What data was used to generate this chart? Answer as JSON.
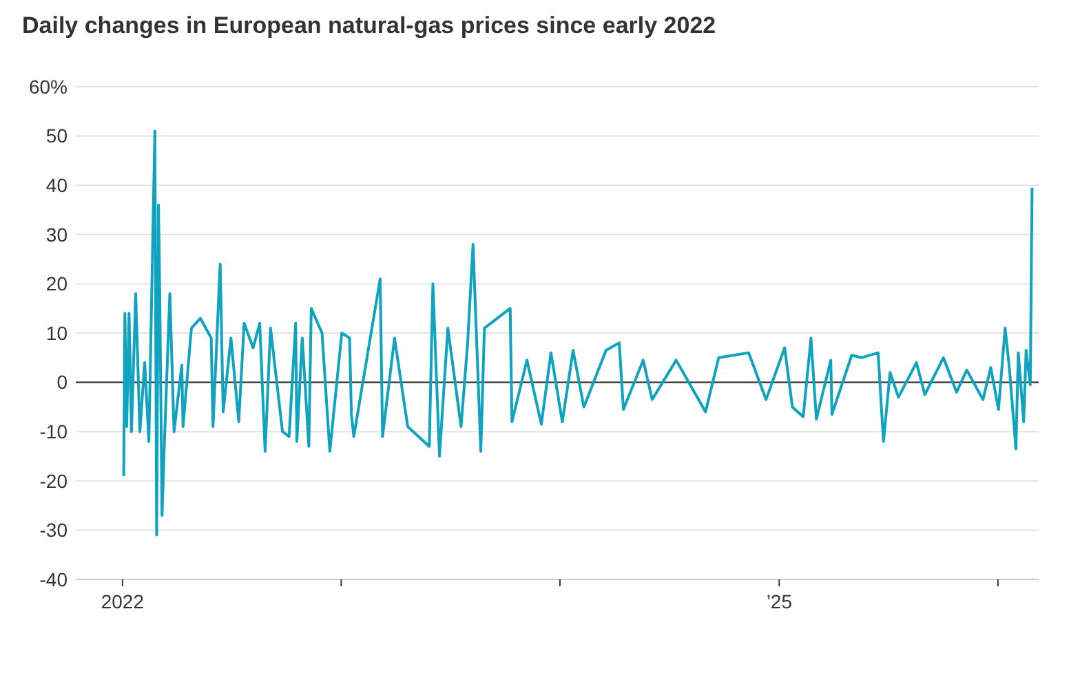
{
  "chart_data": {
    "type": "line",
    "title": "Daily changes in European natural-gas prices since early 2022",
    "x": [
      "2022-01-03",
      "2022-01-05",
      "2022-01-08",
      "2022-01-12",
      "2022-01-16",
      "2022-01-23",
      "2022-01-30",
      "2022-02-07",
      "2022-02-14",
      "2022-02-24",
      "2022-02-27",
      "2022-03-02",
      "2022-03-04",
      "2022-03-08",
      "2022-03-12",
      "2022-03-21",
      "2022-03-28",
      "2022-04-10",
      "2022-04-12",
      "2022-04-26",
      "2022-05-11",
      "2022-05-29",
      "2022-06-01",
      "2022-06-13",
      "2022-06-18",
      "2022-07-01",
      "2022-07-14",
      "2022-07-23",
      "2022-08-07",
      "2022-08-18",
      "2022-08-27",
      "2022-09-05",
      "2022-09-25",
      "2022-10-06",
      "2022-10-17",
      "2022-10-19",
      "2022-10-28",
      "2022-11-08",
      "2022-11-12",
      "2022-11-30",
      "2022-12-13",
      "2023-01-02",
      "2023-01-15",
      "2023-01-18",
      "2023-01-22",
      "2023-03-07",
      "2023-03-11",
      "2023-03-31",
      "2023-04-22",
      "2023-05-28",
      "2023-06-03",
      "2023-06-14",
      "2023-06-28",
      "2023-07-20",
      "2023-07-31",
      "2023-08-09",
      "2023-08-22",
      "2023-08-28",
      "2023-10-10",
      "2023-10-13",
      "2023-11-07",
      "2023-12-01",
      "2023-12-17",
      "2024-01-05",
      "2024-01-23",
      "2024-02-10",
      "2024-03-18",
      "2024-04-09",
      "2024-04-16",
      "2024-05-19",
      "2024-06-03",
      "2024-07-13",
      "2024-08-31",
      "2024-09-22",
      "2024-11-11",
      "2024-12-10",
      "2025-01-10",
      "2025-01-23",
      "2025-02-10",
      "2025-02-23",
      "2025-03-04",
      "2025-03-28",
      "2025-03-30",
      "2025-05-02",
      "2025-05-18",
      "2025-06-15",
      "2025-06-24",
      "2025-07-05",
      "2025-07-19",
      "2025-08-18",
      "2025-09-01",
      "2025-10-02",
      "2025-10-24",
      "2025-11-10",
      "2025-12-07",
      "2025-12-20",
      "2026-01-02",
      "2026-01-13",
      "2026-01-20",
      "2026-01-31",
      "2026-02-04",
      "2026-02-13",
      "2026-02-17",
      "2026-02-24",
      "2026-02-27"
    ],
    "series": [
      {
        "color": "#0fa3bf",
        "values": [
          -19,
          14,
          -9,
          14,
          -10,
          18,
          -10,
          4,
          -12,
          51,
          -31,
          36,
          20,
          -27,
          -12,
          18,
          -10,
          3.5,
          -9,
          11,
          13,
          9,
          -9,
          24,
          -6,
          9,
          -8,
          12,
          7,
          12,
          -14,
          11,
          -10,
          -11,
          12,
          -12,
          9,
          -13,
          15,
          10,
          -14,
          10,
          9,
          -6.5,
          -11,
          21,
          -11,
          9,
          -9,
          -13,
          20,
          -15,
          11,
          -9,
          8,
          28,
          -14,
          11,
          15,
          -8,
          4.5,
          -8.5,
          6,
          -8,
          6.5,
          -5,
          6.5,
          8,
          -5.5,
          4.5,
          -3.5,
          4.5,
          -6,
          5,
          6,
          -3.5,
          7,
          -5,
          -7,
          9,
          -7.5,
          4.5,
          -6.5,
          5.5,
          5,
          6,
          -12,
          2,
          -3,
          4,
          -2.5,
          5,
          -2,
          2.5,
          -3.5,
          3,
          -5.5,
          11,
          3,
          -13.5,
          6,
          -8,
          6.5,
          -0.5,
          39.5
        ]
      }
    ],
    "xlim": [
      "2021-10-15",
      "2026-03-10"
    ],
    "xticks": [
      {
        "value": "2022",
        "label": "2022"
      },
      {
        "value": "2023",
        "label": null
      },
      {
        "value": "2024",
        "label": null
      },
      {
        "value": "2025",
        "label": "’25"
      },
      {
        "value": "2026",
        "label": null
      }
    ],
    "ylim": [
      -40,
      60
    ],
    "yticks": [
      {
        "value": 60,
        "label": "60%"
      },
      50,
      40,
      30,
      20,
      10,
      0,
      -10,
      -20,
      -30,
      -40
    ],
    "grid": "y",
    "ref_lines": [
      {
        "axis": "y",
        "value": 0,
        "color": "#333333"
      }
    ]
  }
}
